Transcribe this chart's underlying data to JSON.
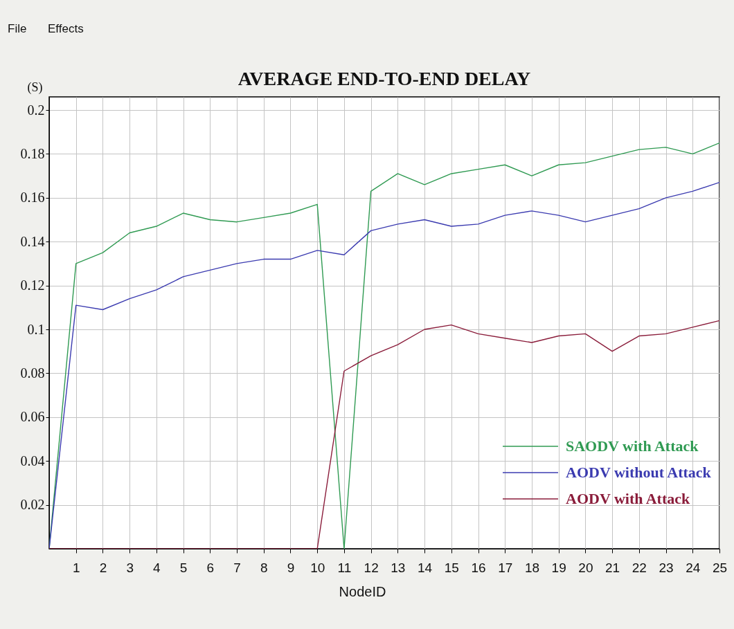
{
  "chart_data": {
    "type": "line",
    "title": "AVERAGE END-TO-END DELAY",
    "xlabel": "NodeID",
    "ylabel": "(S)",
    "x": [
      0,
      1,
      2,
      3,
      4,
      5,
      6,
      7,
      8,
      9,
      10,
      11,
      12,
      13,
      14,
      15,
      16,
      17,
      18,
      19,
      20,
      21,
      22,
      23,
      24,
      25
    ],
    "xlim": [
      0,
      25
    ],
    "xticks": [
      1,
      2,
      3,
      4,
      5,
      6,
      7,
      8,
      9,
      10,
      11,
      12,
      13,
      14,
      15,
      16,
      17,
      18,
      19,
      20,
      21,
      22,
      23,
      24,
      25
    ],
    "ylim": [
      0,
      0.206
    ],
    "yticks": [
      0.02,
      0.04,
      0.06,
      0.08,
      0.1,
      0.12,
      0.14,
      0.16,
      0.18,
      0.2
    ],
    "series": [
      {
        "name": "SAODV with Attack",
        "color": "#2f9a52",
        "values": [
          0,
          0.13,
          0.135,
          0.144,
          0.147,
          0.153,
          0.15,
          0.149,
          0.151,
          0.153,
          0.157,
          0,
          0.163,
          0.171,
          0.166,
          0.171,
          0.173,
          0.175,
          0.17,
          0.175,
          0.176,
          0.179,
          0.182,
          0.183,
          0.18,
          0.185
        ]
      },
      {
        "name": "AODV without Attack",
        "color": "#3b3bb0",
        "values": [
          0,
          0.111,
          0.109,
          0.114,
          0.118,
          0.124,
          0.127,
          0.13,
          0.132,
          0.132,
          0.136,
          0.134,
          0.145,
          0.148,
          0.15,
          0.147,
          0.148,
          0.152,
          0.154,
          0.152,
          0.149,
          0.152,
          0.155,
          0.16,
          0.163,
          0.167
        ]
      },
      {
        "name": "AODV with Attack",
        "color": "#8a1c3a",
        "values": [
          0,
          0,
          0,
          0,
          0,
          0,
          0,
          0,
          0,
          0,
          0,
          0.081,
          0.088,
          0.093,
          0.1,
          0.102,
          0.098,
          0.096,
          0.094,
          0.097,
          0.098,
          0.09,
          0.097,
          0.098,
          0.101,
          0.104
        ]
      }
    ],
    "grid": true,
    "legend": "bottom right",
    "line_style": "solid",
    "annotations": [
      "File",
      "Effects"
    ]
  }
}
